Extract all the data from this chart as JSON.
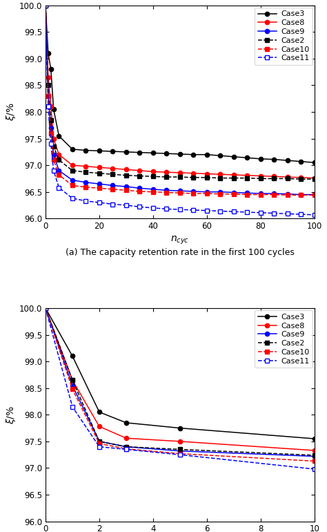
{
  "plot_a": {
    "xlim": [
      0,
      100
    ],
    "ylim": [
      96.0,
      100.0
    ],
    "yticks": [
      96.0,
      96.5,
      97.0,
      97.5,
      98.0,
      98.5,
      99.0,
      99.5,
      100.0
    ],
    "xticks": [
      0,
      20,
      40,
      60,
      80,
      100
    ],
    "caption": "(a) The capacity retention rate in the first 100 cycles",
    "series": {
      "Case3": {
        "color": "#000000",
        "linestyle": "-",
        "marker": "o",
        "markerfacecolor": "#000000",
        "x": [
          0,
          1,
          2,
          3,
          5,
          10,
          15,
          20,
          25,
          30,
          35,
          40,
          45,
          50,
          55,
          60,
          65,
          70,
          75,
          80,
          85,
          90,
          95,
          100
        ],
        "y": [
          100.0,
          99.1,
          98.8,
          98.05,
          97.55,
          97.3,
          97.28,
          97.27,
          97.26,
          97.25,
          97.24,
          97.23,
          97.22,
          97.21,
          97.2,
          97.2,
          97.18,
          97.16,
          97.14,
          97.12,
          97.11,
          97.09,
          97.07,
          97.05
        ]
      },
      "Case8": {
        "color": "#ff0000",
        "linestyle": "-",
        "marker": "o",
        "markerfacecolor": "#ff0000",
        "x": [
          0,
          1,
          2,
          3,
          5,
          10,
          15,
          20,
          25,
          30,
          35,
          40,
          45,
          50,
          55,
          60,
          65,
          70,
          75,
          80,
          85,
          90,
          95,
          100
        ],
        "y": [
          100.0,
          98.65,
          98.1,
          97.5,
          97.2,
          97.0,
          96.98,
          96.96,
          96.94,
          96.92,
          96.9,
          96.88,
          96.87,
          96.86,
          96.85,
          96.84,
          96.83,
          96.82,
          96.81,
          96.8,
          96.79,
          96.78,
          96.77,
          96.76
        ]
      },
      "Case9": {
        "color": "#0000ff",
        "linestyle": "-",
        "marker": "o",
        "markerfacecolor": "#0000ff",
        "x": [
          0,
          1,
          2,
          3,
          5,
          10,
          15,
          20,
          25,
          30,
          35,
          40,
          45,
          50,
          55,
          60,
          65,
          70,
          75,
          80,
          85,
          90,
          95,
          100
        ],
        "y": [
          100.0,
          98.3,
          97.7,
          97.2,
          96.9,
          96.72,
          96.68,
          96.65,
          96.62,
          96.6,
          96.57,
          96.55,
          96.53,
          96.52,
          96.51,
          96.5,
          96.5,
          96.49,
          96.48,
          96.47,
          96.47,
          96.46,
          96.45,
          96.45
        ]
      },
      "Case2": {
        "color": "#000000",
        "linestyle": "--",
        "marker": "s",
        "markerfacecolor": "#000000",
        "x": [
          0,
          1,
          2,
          3,
          5,
          10,
          15,
          20,
          25,
          30,
          35,
          40,
          45,
          50,
          55,
          60,
          65,
          70,
          75,
          80,
          85,
          90,
          95,
          100
        ],
        "y": [
          100.0,
          98.5,
          97.85,
          97.35,
          97.1,
          96.9,
          96.87,
          96.85,
          96.83,
          96.81,
          96.8,
          96.79,
          96.78,
          96.78,
          96.77,
          96.77,
          96.76,
          96.76,
          96.76,
          96.75,
          96.75,
          96.75,
          96.74,
          96.74
        ]
      },
      "Case10": {
        "color": "#ff0000",
        "linestyle": "--",
        "marker": "s",
        "markerfacecolor": "#ff0000",
        "x": [
          0,
          1,
          2,
          3,
          5,
          10,
          15,
          20,
          25,
          30,
          35,
          40,
          45,
          50,
          55,
          60,
          65,
          70,
          75,
          80,
          85,
          90,
          95,
          100
        ],
        "y": [
          100.0,
          98.3,
          97.6,
          97.1,
          96.82,
          96.62,
          96.59,
          96.57,
          96.55,
          96.53,
          96.51,
          96.5,
          96.49,
          96.48,
          96.47,
          96.47,
          96.46,
          96.46,
          96.45,
          96.45,
          96.45,
          96.44,
          96.44,
          96.44
        ]
      },
      "Case11": {
        "color": "#0000ff",
        "linestyle": "--",
        "marker": "s",
        "markerfacecolor": "white",
        "x": [
          0,
          1,
          2,
          3,
          5,
          10,
          15,
          20,
          25,
          30,
          35,
          40,
          45,
          50,
          55,
          60,
          65,
          70,
          75,
          80,
          85,
          90,
          95,
          100
        ],
        "y": [
          100.0,
          98.1,
          97.4,
          96.9,
          96.58,
          96.38,
          96.33,
          96.3,
          96.27,
          96.25,
          96.22,
          96.2,
          96.18,
          96.17,
          96.16,
          96.15,
          96.14,
          96.13,
          96.12,
          96.11,
          96.1,
          96.09,
          96.08,
          96.07
        ]
      }
    }
  },
  "plot_b": {
    "xlim": [
      0,
      10
    ],
    "ylim": [
      96.0,
      100.0
    ],
    "yticks": [
      96.0,
      96.5,
      97.0,
      97.5,
      98.0,
      98.5,
      99.0,
      99.5,
      100.0
    ],
    "xticks": [
      0,
      2,
      4,
      6,
      8,
      10
    ],
    "caption": "(b) The capacity retention rate in the first ten cycles",
    "series": {
      "Case3": {
        "color": "#000000",
        "linestyle": "-",
        "marker": "o",
        "markerfacecolor": "#000000",
        "x": [
          0,
          1,
          2,
          3,
          5,
          10
        ],
        "y": [
          100.0,
          99.1,
          98.05,
          97.85,
          97.75,
          97.55
        ]
      },
      "Case8": {
        "color": "#ff0000",
        "linestyle": "-",
        "marker": "o",
        "markerfacecolor": "#ff0000",
        "x": [
          0,
          1,
          2,
          3,
          5,
          10
        ],
        "y": [
          100.0,
          98.65,
          97.78,
          97.56,
          97.5,
          97.33
        ]
      },
      "Case9": {
        "color": "#0000ff",
        "linestyle": "-",
        "marker": "o",
        "markerfacecolor": "#0000ff",
        "x": [
          0,
          1,
          2,
          3,
          5,
          10
        ],
        "y": [
          100.0,
          98.55,
          97.5,
          97.4,
          97.32,
          97.22
        ]
      },
      "Case2": {
        "color": "#000000",
        "linestyle": "--",
        "marker": "s",
        "markerfacecolor": "#000000",
        "x": [
          0,
          1,
          2,
          3,
          5,
          10
        ],
        "y": [
          100.0,
          98.65,
          97.5,
          97.4,
          97.35,
          97.24
        ]
      },
      "Case10": {
        "color": "#ff0000",
        "linestyle": "--",
        "marker": "s",
        "markerfacecolor": "#ff0000",
        "x": [
          0,
          1,
          2,
          3,
          5,
          10
        ],
        "y": [
          100.0,
          98.48,
          97.46,
          97.36,
          97.27,
          97.13
        ]
      },
      "Case11": {
        "color": "#0000ff",
        "linestyle": "--",
        "marker": "s",
        "markerfacecolor": "white",
        "x": [
          0,
          1,
          2,
          3,
          5,
          10
        ],
        "y": [
          100.0,
          98.15,
          97.4,
          97.35,
          97.25,
          96.98
        ]
      }
    }
  },
  "legend_order": [
    "Case3",
    "Case8",
    "Case9",
    "Case2",
    "Case10",
    "Case11"
  ]
}
